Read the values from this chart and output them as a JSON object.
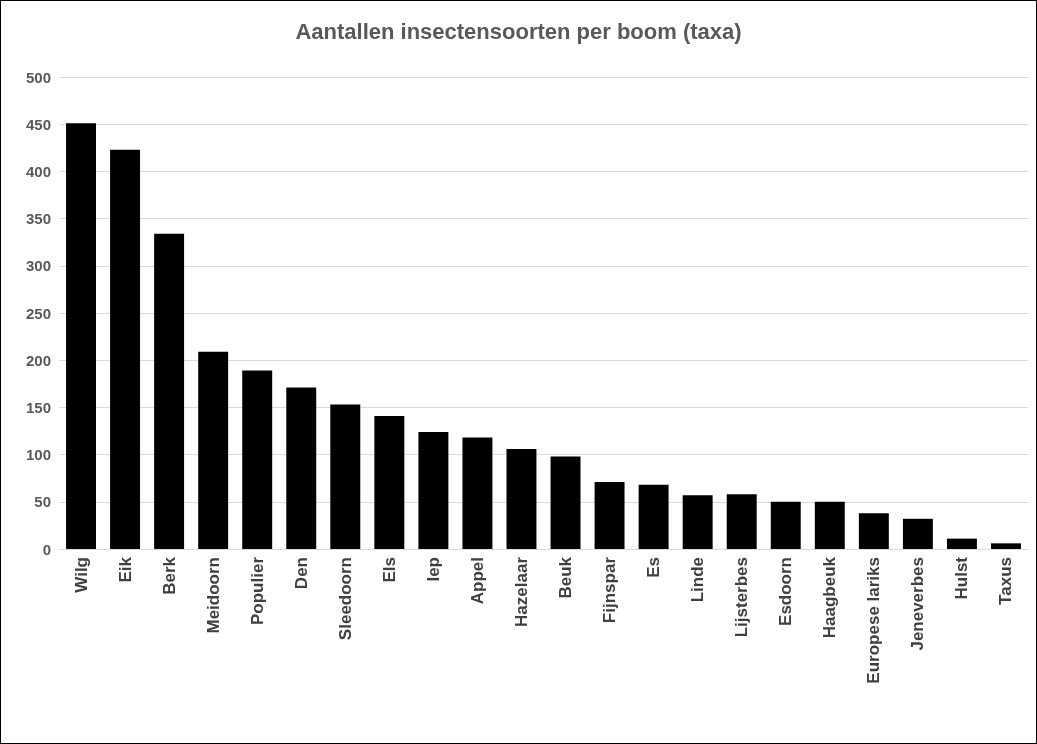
{
  "chart_data": {
    "type": "bar",
    "title": "Aantallen insectensoorten per boom (taxa)",
    "categories": [
      "Wilg",
      "Eik",
      "Berk",
      "Meidoorn",
      "Populier",
      "Den",
      "Sleedoorn",
      "Els",
      "Iep",
      "Appel",
      "Hazelaar",
      "Beuk",
      "Fijnspar",
      "Es",
      "Linde",
      "Lijsterbes",
      "Esdoorn",
      "Haagbeuk",
      "Europese lariks",
      "Jeneverbes",
      "Hulst",
      "Taxus"
    ],
    "values": [
      451,
      423,
      334,
      209,
      189,
      171,
      153,
      141,
      124,
      118,
      106,
      98,
      71,
      68,
      57,
      58,
      50,
      50,
      38,
      32,
      11,
      6
    ],
    "color": "#000000",
    "ylim": [
      0,
      500
    ],
    "yticks": [
      0,
      50,
      100,
      150,
      200,
      250,
      300,
      350,
      400,
      450,
      500
    ],
    "grid": "y"
  }
}
